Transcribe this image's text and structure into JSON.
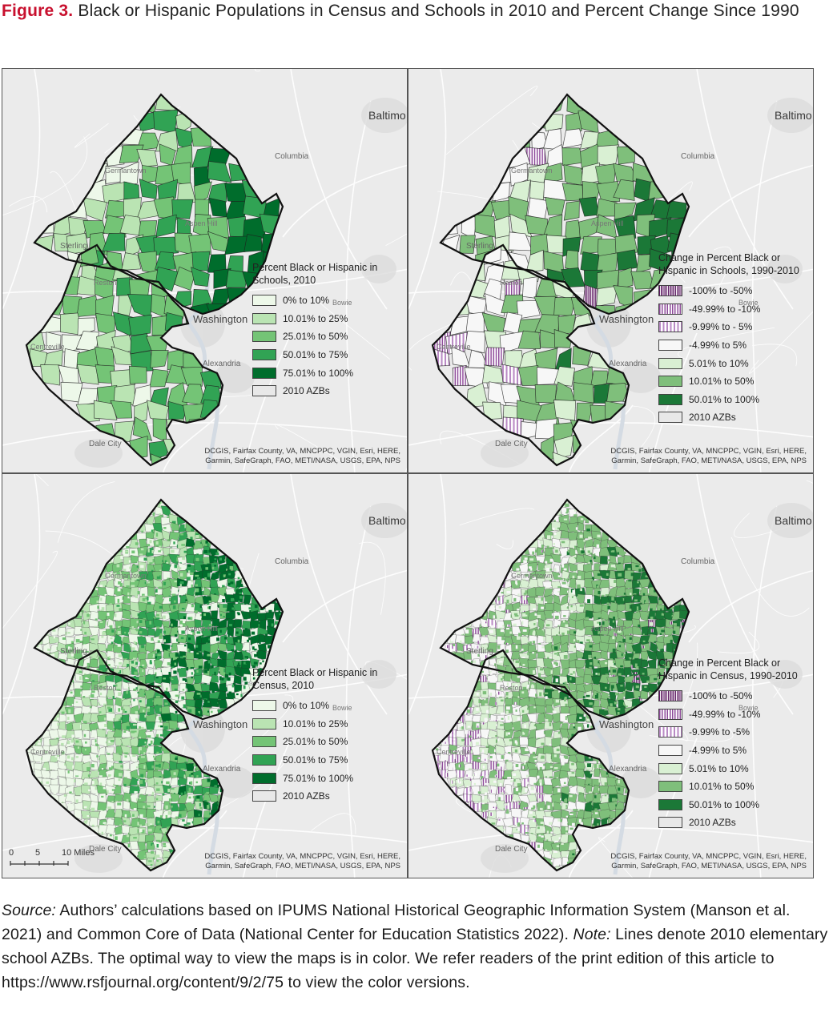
{
  "figure": {
    "label": "Figure 3.",
    "title": "Black or Hispanic Populations in Census and Schools in 2010 and Percent Change Since 1990"
  },
  "place_labels": {
    "baltimore": "Baltimo",
    "columbia": "Columbia",
    "germantown": "Germantown",
    "aspen_hill": "Aspen Hill",
    "sterling": "Sterling",
    "reston": "Reston",
    "bowie": "Bowie",
    "washington": "Washington",
    "centreville": "Centreville",
    "alexandria": "Alexandria",
    "dale_city": "Dale City"
  },
  "attribution": "DCGIS, Fairfax County, VA, MNCPPC, VGIN, Esri, HERE, Garmin, SafeGraph, FAO, METI/NASA, USGS, EPA, NPS",
  "scale_bar": {
    "ticks": [
      "0",
      "5",
      "10 Miles"
    ]
  },
  "panels": [
    {
      "id": "schools-2010",
      "legend_title": "Percent Black or Hispanic in Schools, 2010",
      "classes": [
        {
          "label": "0% to 10%",
          "color": "#edf8e9"
        },
        {
          "label": "10.01% to 25%",
          "color": "#bae4b3"
        },
        {
          "label": "25.01% to 50%",
          "color": "#74c476"
        },
        {
          "label": "50.01% to 75%",
          "color": "#31a354"
        },
        {
          "label": "75.01% to 100%",
          "color": "#006d2c"
        },
        {
          "label": "2010 AZBs",
          "color": "#e8e8e8"
        }
      ]
    },
    {
      "id": "schools-change",
      "legend_title": "Change in Percent Black or Hispanic in Schools, 1990-2010",
      "classes": [
        {
          "label": "-100% to -50%",
          "color": "#6a1b6b"
        },
        {
          "label": "-49.99% to -10%",
          "color": "#9b59a8"
        },
        {
          "label": "-9.99% to - 5%",
          "color": "#cfa8d6"
        },
        {
          "label": "-4.99% to 5%",
          "color": "#f7f7f7"
        },
        {
          "label": "5.01% to 10%",
          "color": "#d9f0d3"
        },
        {
          "label": "10.01% to 50%",
          "color": "#7fbf7b"
        },
        {
          "label": "50.01% to 100%",
          "color": "#1b7837"
        },
        {
          "label": "2010 AZBs",
          "color": "#e8e8e8"
        }
      ]
    },
    {
      "id": "census-2010",
      "legend_title": "Percent Black or Hispanic in Census, 2010",
      "classes": [
        {
          "label": "0% to 10%",
          "color": "#edf8e9"
        },
        {
          "label": "10.01% to 25%",
          "color": "#bae4b3"
        },
        {
          "label": "25.01% to 50%",
          "color": "#74c476"
        },
        {
          "label": "50.01% to 75%",
          "color": "#31a354"
        },
        {
          "label": "75.01% to 100%",
          "color": "#006d2c"
        },
        {
          "label": "2010 AZBs",
          "color": "#e8e8e8"
        }
      ]
    },
    {
      "id": "census-change",
      "legend_title": "Change in Percent Black or Hispanic in Census, 1990-2010",
      "classes": [
        {
          "label": "-100% to -50%",
          "color": "#6a1b6b"
        },
        {
          "label": "-49.99% to -10%",
          "color": "#9b59a8"
        },
        {
          "label": "-9.99% to -5%",
          "color": "#cfa8d6"
        },
        {
          "label": "-4.99% to 5%",
          "color": "#f7f7f7"
        },
        {
          "label": "5.01% to 10%",
          "color": "#d9f0d3"
        },
        {
          "label": "10.01% to 50%",
          "color": "#7fbf7b"
        },
        {
          "label": "50.01% to 100%",
          "color": "#1b7837"
        },
        {
          "label": "2010 AZBs",
          "color": "#e8e8e8"
        }
      ]
    }
  ],
  "caption": {
    "source_label": "Source:",
    "source_text": "Authors’ calculations based on IPUMS National Historical Geographic Information System (Manson et al. 2021) and Common Core of Data (National Center for Education Statistics 2022).",
    "note_label": "Note:",
    "note_text": "Lines denote 2010 elementary school AZBs. The optimal way to view the maps is in color. We refer readers of the print edition of this article to https://www.rsfjournal.org/content/9/2/75 to view the color versions."
  }
}
